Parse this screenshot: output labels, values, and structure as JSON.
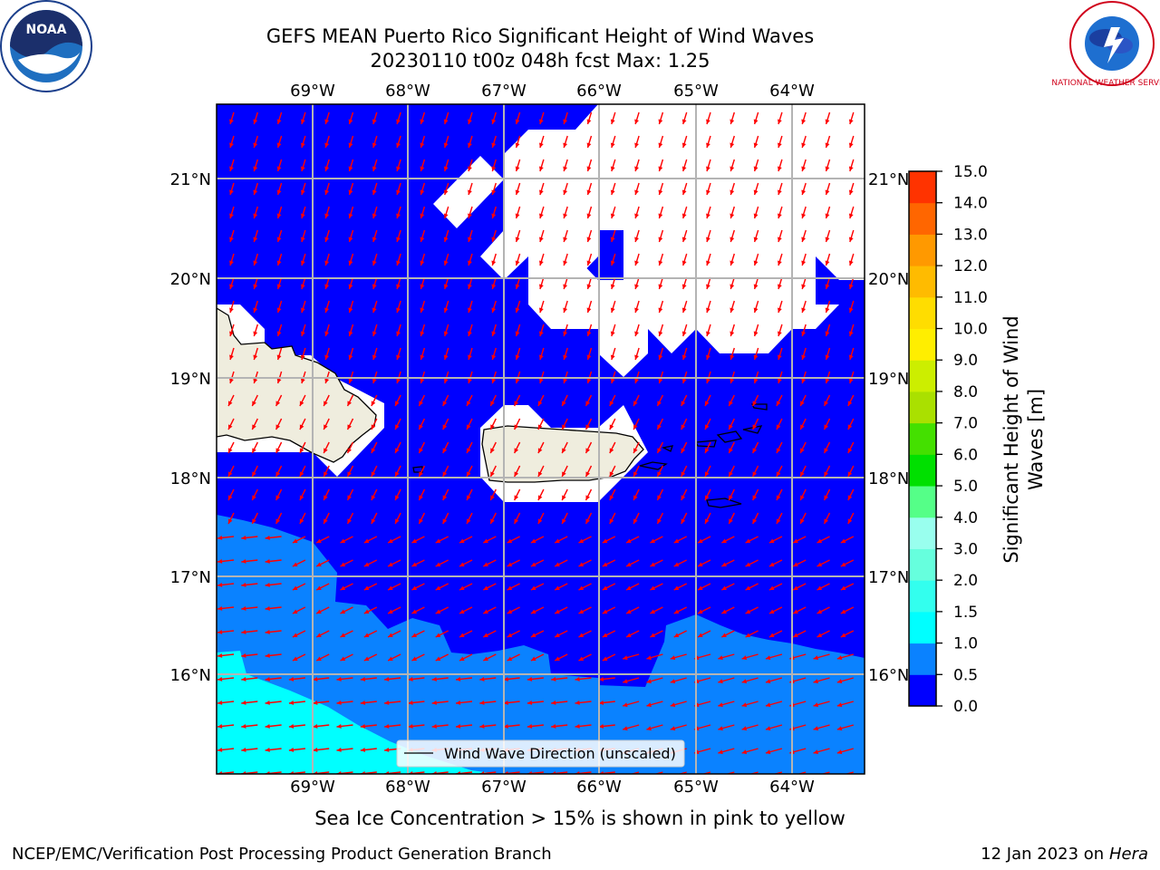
{
  "header": {
    "title_line1": "GEFS MEAN Puerto Rico Significant Height of Wind Waves",
    "title_line2": "20230110 t00z 048h fcst   Max: 1.25"
  },
  "logos": {
    "noaa": {
      "text": "NOAA"
    },
    "nws": {
      "text": "NATIONAL WEATHER SERVICE"
    }
  },
  "map": {
    "lon_labels": [
      "69°W",
      "68°W",
      "67°W",
      "66°W",
      "65°W",
      "64°W"
    ],
    "lat_labels": [
      "21°N",
      "20°N",
      "19°N",
      "18°N",
      "17°N",
      "16°N"
    ],
    "legend_label": "Wind Wave Direction (unscaled)"
  },
  "colorbar": {
    "label_line1": "Significant Height of Wind",
    "label_line2": "Waves [m]",
    "ticks": [
      "0.0",
      "0.5",
      "1.0",
      "1.5",
      "2.0",
      "3.0",
      "4.0",
      "5.0",
      "6.0",
      "7.0",
      "8.0",
      "9.0",
      "10.0",
      "11.0",
      "12.0",
      "13.0",
      "14.0",
      "15.0"
    ],
    "colors": [
      "#0000ff",
      "#0a82ff",
      "#00ffff",
      "#33ffee",
      "#66ffdd",
      "#99ffee",
      "#55ff88",
      "#00e000",
      "#44e000",
      "#aae000",
      "#ccee00",
      "#ffee00",
      "#ffdd00",
      "#ffbb00",
      "#ff9900",
      "#ff6600",
      "#ff3300",
      "#ff0000"
    ]
  },
  "colors": {
    "ocean_low": "#0000ff",
    "ocean_mid": "#0a82ff",
    "ocean_cyan": "#00ffff",
    "land": "#efedde",
    "arrow": "#ff0000",
    "grid": "#b4b4b4"
  },
  "footer": {
    "ice_note": "Sea Ice Concentration > 15% is shown in pink to yellow",
    "branch": "NCEP/EMC/Verification Post Processing Product Generation Branch",
    "date_prefix": "12 Jan 2023 on ",
    "date_host": "Hera"
  }
}
